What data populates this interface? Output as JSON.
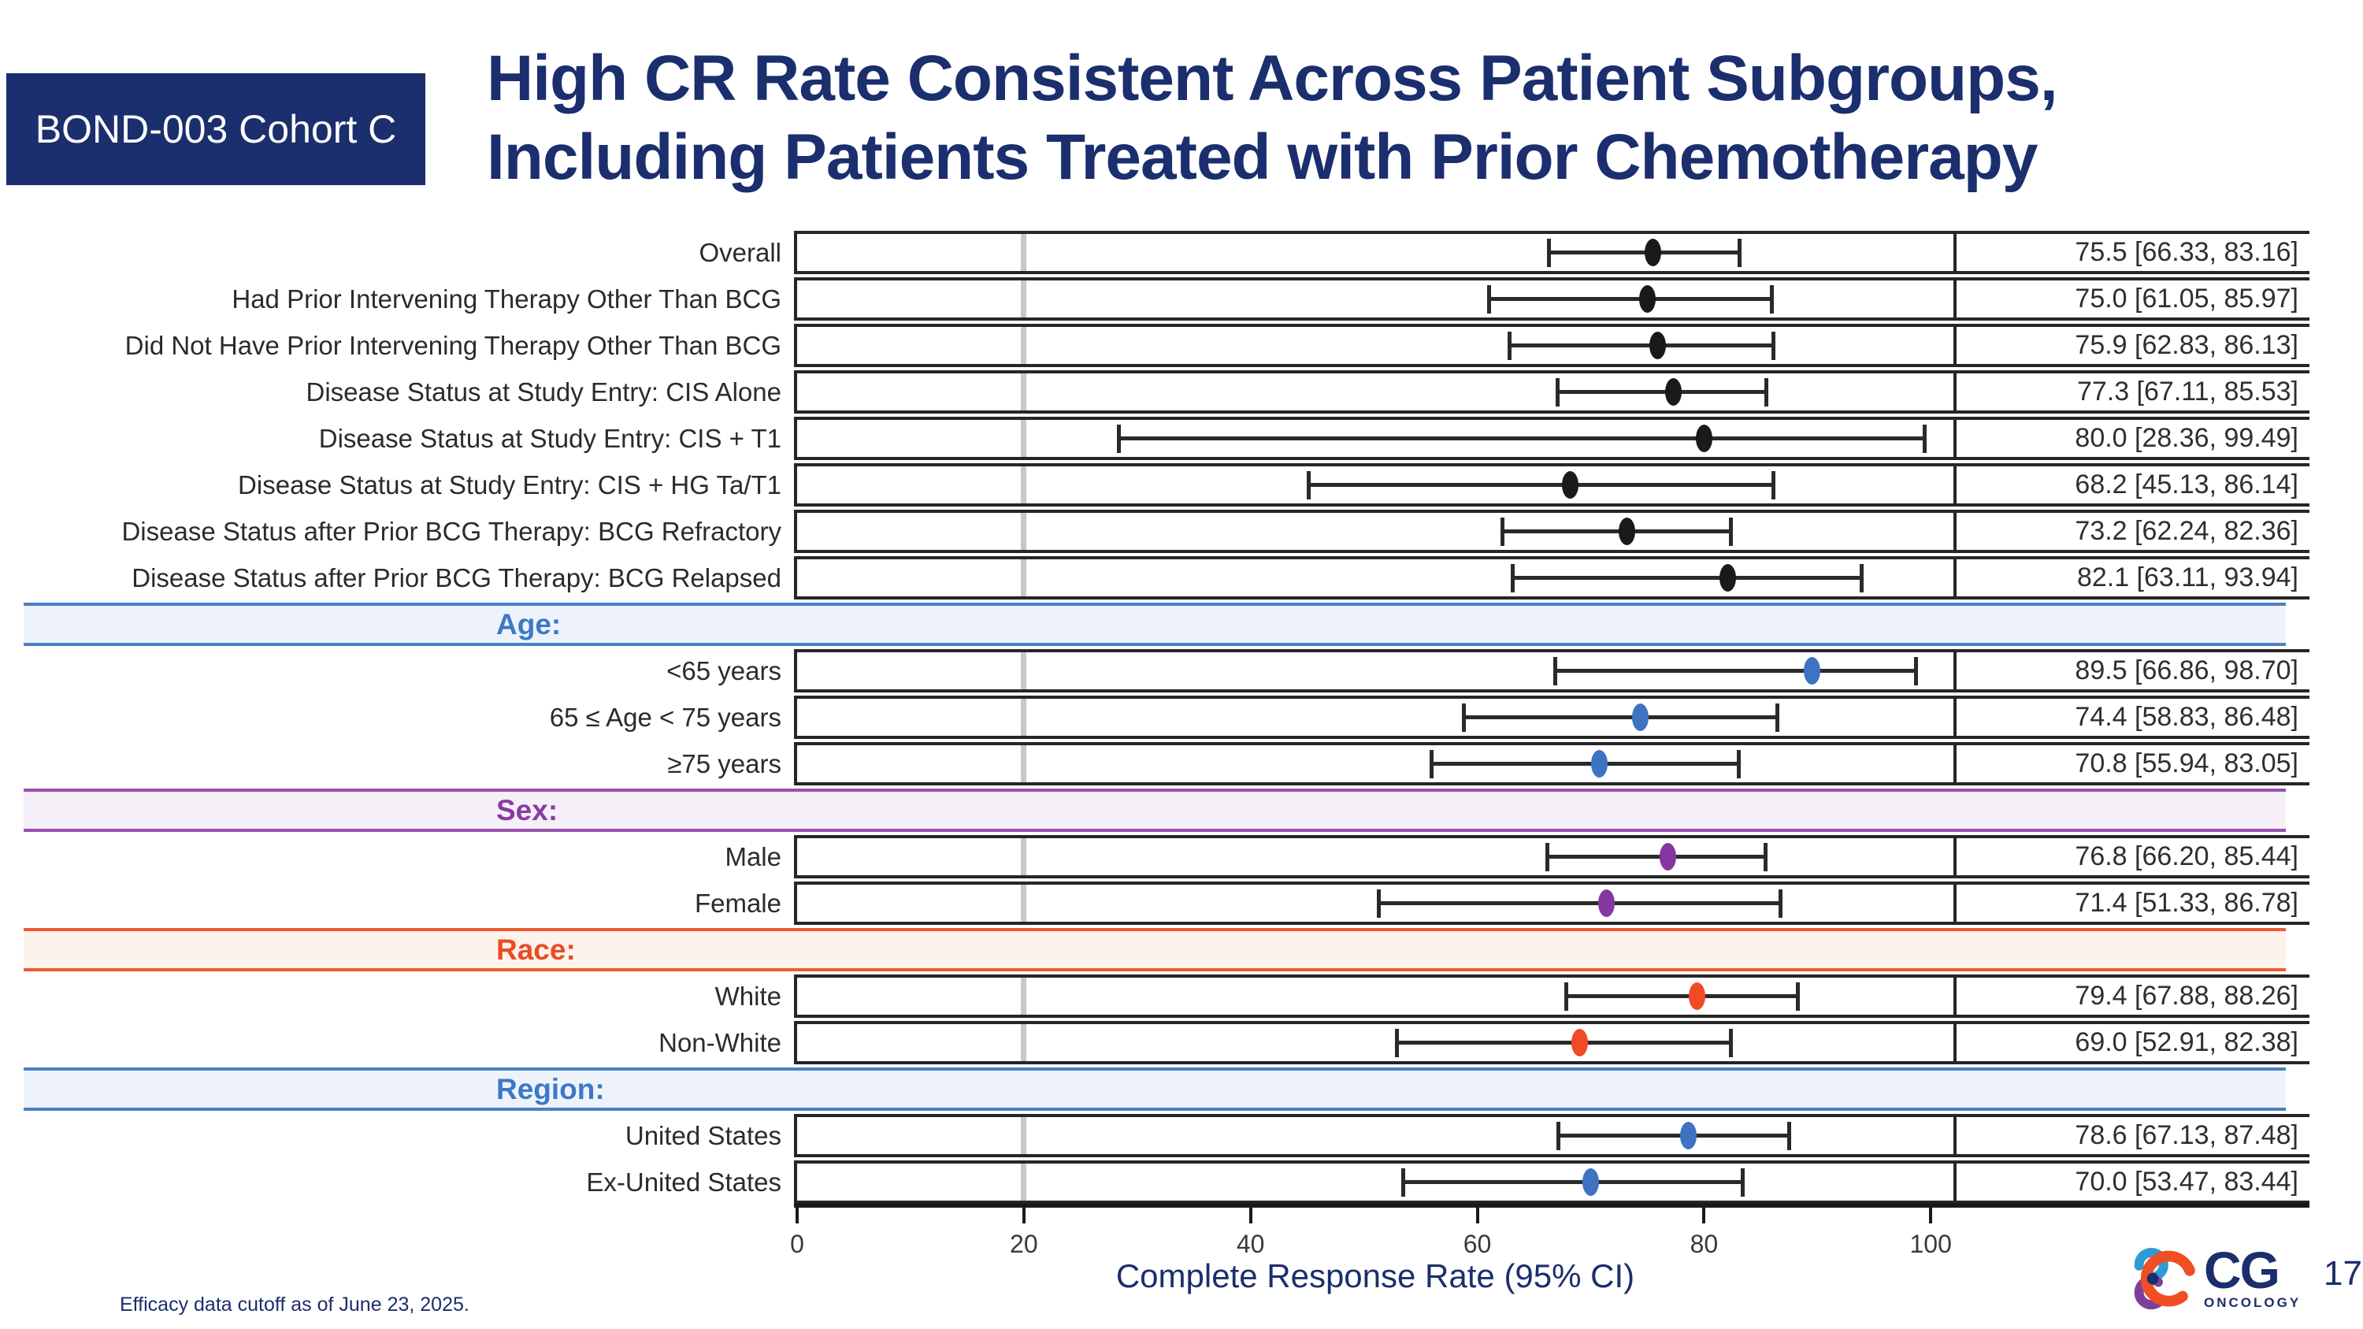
{
  "slide": {
    "badge": "BOND-003 Cohort C",
    "title_line1": "High CR Rate Consistent Across Patient Subgroups,",
    "title_line2": "Including Patients Treated with Prior Chemotherapy",
    "footnote": "Efficacy data cutoff as of June 23, 2025.",
    "page_number": "17",
    "logo": {
      "text": "CG",
      "subtext": "ONCOLOGY"
    }
  },
  "chart_data": {
    "type": "forest",
    "xlabel": "Complete Response Rate (95% CI)",
    "x_ticks": [
      0,
      20,
      40,
      60,
      80,
      100
    ],
    "x_max": 102,
    "reference_line": 20,
    "grid": false,
    "marker_colors": {
      "black": "#1a1a1a",
      "blue": "#3d73c0",
      "purple": "#8636a0",
      "red": "#f04b26"
    },
    "band_styles": {
      "blue": {
        "line": "#4a80c4",
        "fill": "#eef3fb",
        "text": "#3d78c8"
      },
      "purple": {
        "line": "#9b4fad",
        "fill": "#f5eff8",
        "text": "#8b3aa3"
      },
      "orange": {
        "line": "#ee5b31",
        "fill": "#fdf2ec",
        "text": "#ea4c22"
      }
    },
    "rows": [
      {
        "kind": "row",
        "label": "Overall",
        "est": 75.5,
        "lo": 66.33,
        "hi": 83.16,
        "value_text": "75.5 [66.33, 83.16]",
        "color": "black"
      },
      {
        "kind": "row",
        "label": "Had Prior Intervening Therapy Other Than BCG",
        "est": 75.0,
        "lo": 61.05,
        "hi": 85.97,
        "value_text": "75.0 [61.05, 85.97]",
        "color": "black"
      },
      {
        "kind": "row",
        "label": "Did Not Have Prior Intervening Therapy Other Than BCG",
        "est": 75.9,
        "lo": 62.83,
        "hi": 86.13,
        "value_text": "75.9 [62.83, 86.13]",
        "color": "black"
      },
      {
        "kind": "row",
        "label": "Disease Status at Study Entry: CIS Alone",
        "est": 77.3,
        "lo": 67.11,
        "hi": 85.53,
        "value_text": "77.3 [67.11, 85.53]",
        "color": "black"
      },
      {
        "kind": "row",
        "label": "Disease Status at Study Entry: CIS + T1",
        "est": 80.0,
        "lo": 28.36,
        "hi": 99.49,
        "value_text": "80.0 [28.36, 99.49]",
        "color": "black"
      },
      {
        "kind": "row",
        "label": "Disease Status at Study Entry: CIS + HG Ta/T1",
        "est": 68.2,
        "lo": 45.13,
        "hi": 86.14,
        "value_text": "68.2 [45.13, 86.14]",
        "color": "black"
      },
      {
        "kind": "row",
        "label": "Disease Status after Prior BCG Therapy: BCG Refractory",
        "est": 73.2,
        "lo": 62.24,
        "hi": 82.36,
        "value_text": "73.2 [62.24, 82.36]",
        "color": "black"
      },
      {
        "kind": "row",
        "label": "Disease Status after Prior BCG Therapy: BCG Relapsed",
        "est": 82.1,
        "lo": 63.11,
        "hi": 93.94,
        "value_text": "82.1 [63.11, 93.94]",
        "color": "black"
      },
      {
        "kind": "band",
        "label": "Age:",
        "style": "blue"
      },
      {
        "kind": "row",
        "label": "<65 years",
        "est": 89.5,
        "lo": 66.86,
        "hi": 98.7,
        "value_text": "89.5 [66.86, 98.70]",
        "color": "blue"
      },
      {
        "kind": "row",
        "label": "65 ≤ Age < 75 years",
        "est": 74.4,
        "lo": 58.83,
        "hi": 86.48,
        "value_text": "74.4 [58.83, 86.48]",
        "color": "blue"
      },
      {
        "kind": "row",
        "label": "≥75 years",
        "est": 70.8,
        "lo": 55.94,
        "hi": 83.05,
        "value_text": "70.8 [55.94, 83.05]",
        "color": "blue"
      },
      {
        "kind": "band",
        "label": "Sex:",
        "style": "purple"
      },
      {
        "kind": "row",
        "label": "Male",
        "est": 76.8,
        "lo": 66.2,
        "hi": 85.44,
        "value_text": "76.8 [66.20, 85.44]",
        "color": "purple"
      },
      {
        "kind": "row",
        "label": "Female",
        "est": 71.4,
        "lo": 51.33,
        "hi": 86.78,
        "value_text": "71.4 [51.33, 86.78]",
        "color": "purple"
      },
      {
        "kind": "band",
        "label": "Race:",
        "style": "orange"
      },
      {
        "kind": "row",
        "label": "White",
        "est": 79.4,
        "lo": 67.88,
        "hi": 88.26,
        "value_text": "79.4 [67.88, 88.26]",
        "color": "red"
      },
      {
        "kind": "row",
        "label": "Non-White",
        "est": 69.0,
        "lo": 52.91,
        "hi": 82.38,
        "value_text": "69.0 [52.91, 82.38]",
        "color": "red"
      },
      {
        "kind": "band",
        "label": "Region:",
        "style": "blue"
      },
      {
        "kind": "row",
        "label": "United States",
        "est": 78.6,
        "lo": 67.13,
        "hi": 87.48,
        "value_text": "78.6 [67.13, 87.48]",
        "color": "blue"
      },
      {
        "kind": "row",
        "label": "Ex-United States",
        "est": 70.0,
        "lo": 53.47,
        "hi": 83.44,
        "value_text": "70.0 [53.47, 83.44]",
        "color": "blue"
      }
    ]
  }
}
